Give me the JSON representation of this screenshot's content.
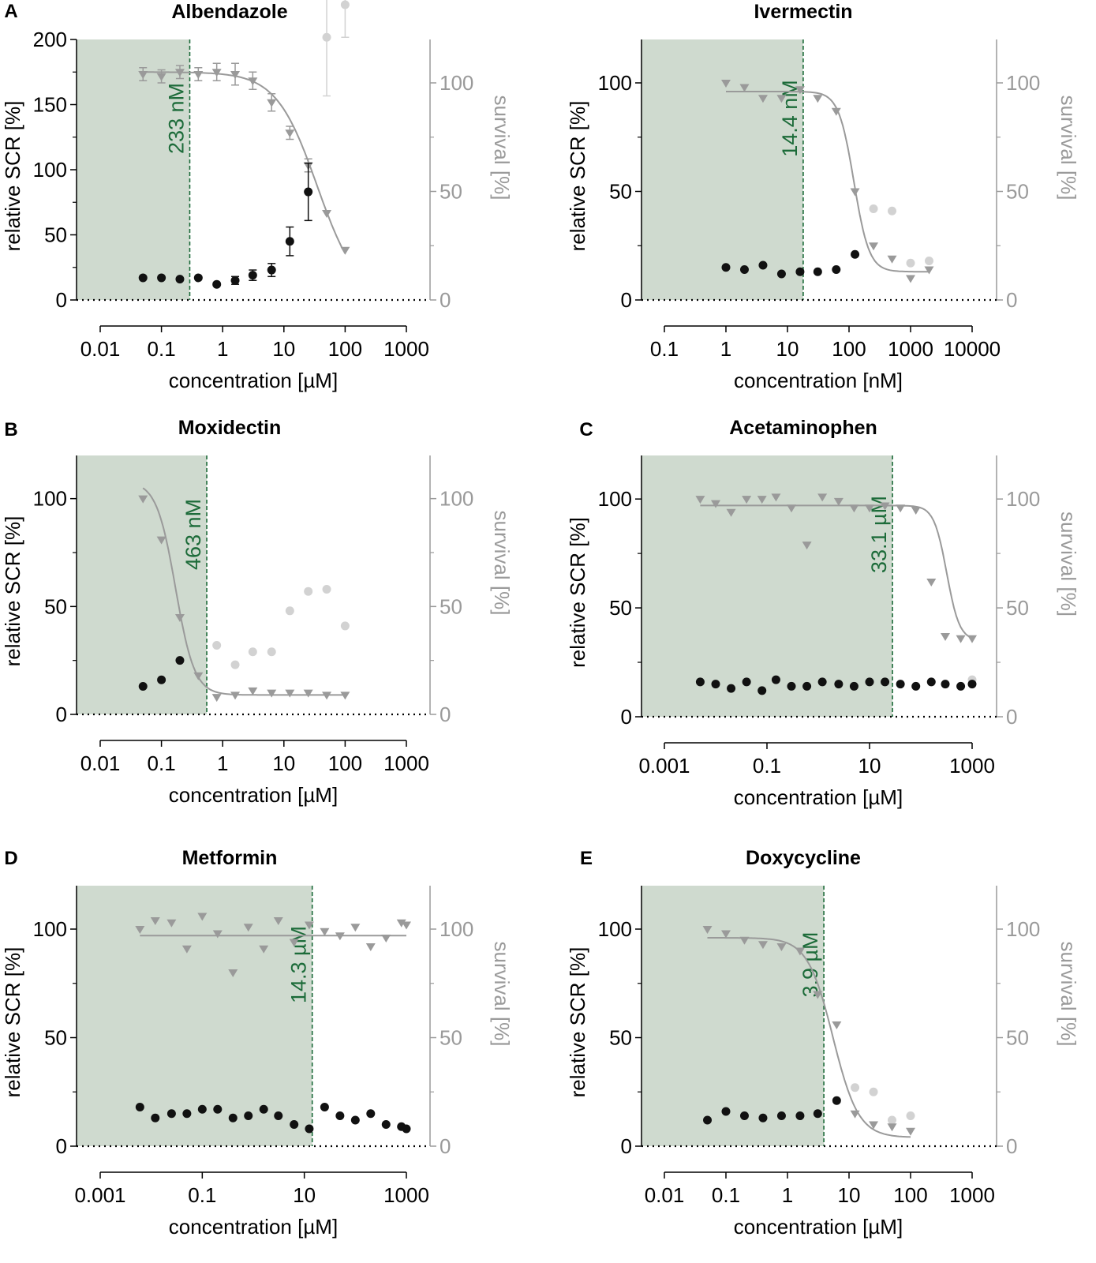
{
  "colors": {
    "shade": "#cfdacf",
    "marker_line": "#1c6b39",
    "scr_points": "#111111",
    "survival_points": "#9a9a9a",
    "excluded_points": "#d2d2d2",
    "fit_line": "#9a9a9a",
    "axis_right": "#9a9a9a"
  },
  "chart_data": [
    {
      "panel": "A",
      "title": "Albendazole",
      "type": "scatter",
      "xlabel": "concentration [µM]",
      "ylabel": "relative SCR [%]",
      "y2label": "survival [%]",
      "xticks": [
        0.01,
        0.1,
        1,
        10,
        100,
        1000
      ],
      "xtick_labels": [
        "0.01",
        "0.1",
        "1",
        "10",
        "100",
        "1000"
      ],
      "xlim": [
        0.01,
        1000
      ],
      "ylim": [
        0,
        200
      ],
      "yticks": [
        0,
        50,
        100,
        150,
        200
      ],
      "ytick_labels": [
        "0",
        "50",
        "100",
        "150",
        "200"
      ],
      "y2lim": [
        0,
        120
      ],
      "y2ticks": [
        0,
        50,
        100
      ],
      "y2tick_labels": [
        "0",
        "50",
        "100"
      ],
      "marker_x": 0.29,
      "marker_label": "233 nM",
      "scr": {
        "x": [
          0.05,
          0.1,
          0.2,
          0.4,
          0.8,
          1.6,
          3.1,
          6.3,
          12.5,
          25
        ],
        "y": [
          17,
          17,
          16,
          17,
          12,
          15,
          19,
          23,
          45,
          83
        ],
        "err": [
          0,
          0,
          0,
          0,
          0,
          3,
          4,
          5,
          11,
          22
        ]
      },
      "survival": {
        "x": [
          0.05,
          0.1,
          0.2,
          0.4,
          0.8,
          1.6,
          3.1,
          6.3,
          12.5,
          25,
          50,
          100
        ],
        "y": [
          104,
          103,
          105,
          104,
          105,
          104,
          101,
          91,
          77,
          62,
          40,
          23
        ],
        "err": [
          3,
          3,
          3,
          3,
          4,
          5,
          4,
          4,
          3,
          3,
          0,
          0
        ]
      },
      "excluded": {
        "x": [
          50,
          100
        ],
        "y": [
          121,
          136
        ],
        "err": [
          27,
          15
        ]
      },
      "fit": {
        "type": "logistic",
        "top": 105,
        "bottom": 0,
        "ec50": 35,
        "hill": 1.3,
        "from": 0.05,
        "to": 100
      }
    },
    {
      "panel": "",
      "title": "Ivermectin",
      "type": "scatter",
      "xlabel": "concentration [nM]",
      "ylabel": "relative SCR [%]",
      "y2label": "survival [%]",
      "xticks": [
        0.1,
        1,
        10,
        100,
        1000,
        10000
      ],
      "xtick_labels": [
        "0.1",
        "1",
        "10",
        "100",
        "1000",
        "10000"
      ],
      "xlim": [
        0.1,
        10000
      ],
      "ylim": [
        0,
        120
      ],
      "yticks": [
        0,
        50,
        100
      ],
      "ytick_labels": [
        "0",
        "50",
        "100"
      ],
      "y2lim": [
        0,
        120
      ],
      "y2ticks": [
        0,
        50,
        100
      ],
      "y2tick_labels": [
        "0",
        "50",
        "100"
      ],
      "marker_x": 18,
      "marker_label": "14.4 nM",
      "scr": {
        "x": [
          1,
          2,
          4,
          8,
          16,
          31,
          62,
          125
        ],
        "y": [
          15,
          14,
          16,
          12,
          13,
          13,
          14,
          21
        ]
      },
      "survival": {
        "x": [
          1,
          2,
          4,
          8,
          16,
          31,
          62,
          125,
          250,
          500,
          1000,
          2000
        ],
        "y": [
          100,
          98,
          93,
          93,
          97,
          93,
          87,
          50,
          25,
          19,
          10,
          14
        ]
      },
      "excluded": {
        "x": [
          250,
          500,
          1000,
          2000
        ],
        "y": [
          42,
          41,
          17,
          18
        ]
      },
      "fit": {
        "type": "logistic",
        "top": 96,
        "bottom": 13,
        "ec50": 120,
        "hill": 3.5,
        "from": 1,
        "to": 2000
      }
    },
    {
      "panel": "B",
      "title": "Moxidectin",
      "type": "scatter",
      "xlabel": "concentration [µM]",
      "ylabel": "relative SCR [%]",
      "y2label": "survival [%]",
      "xticks": [
        0.01,
        0.1,
        1,
        10,
        100,
        1000
      ],
      "xtick_labels": [
        "0.01",
        "0.1",
        "1",
        "10",
        "100",
        "1000"
      ],
      "xlim": [
        0.01,
        1000
      ],
      "ylim": [
        0,
        120
      ],
      "yticks": [
        0,
        50,
        100
      ],
      "ytick_labels": [
        "0",
        "50",
        "100"
      ],
      "y2lim": [
        0,
        120
      ],
      "y2ticks": [
        0,
        50,
        100
      ],
      "y2tick_labels": [
        "0",
        "50",
        "100"
      ],
      "marker_x": 0.55,
      "marker_label": "463 nM",
      "scr": {
        "x": [
          0.05,
          0.1,
          0.2
        ],
        "y": [
          13,
          16,
          25
        ]
      },
      "survival": {
        "x": [
          0.05,
          0.1,
          0.2,
          0.4,
          0.8,
          1.6,
          3.1,
          6.3,
          12.5,
          25,
          50,
          100
        ],
        "y": [
          100,
          81,
          45,
          18,
          8,
          9,
          11,
          10,
          10,
          10,
          9,
          9
        ]
      },
      "excluded": {
        "x": [
          0.8,
          1.6,
          3.1,
          6.3,
          12.5,
          25,
          50,
          100
        ],
        "y": [
          32,
          23,
          29,
          29,
          48,
          57,
          58,
          41
        ]
      },
      "fit": {
        "type": "logistic",
        "top": 108,
        "bottom": 9,
        "ec50": 0.17,
        "hill": 2.8,
        "from": 0.05,
        "to": 100
      }
    },
    {
      "panel": "C",
      "title": "Acetaminophen",
      "type": "scatter",
      "xlabel": "concentration [µM]",
      "ylabel": "relative SCR [%]",
      "y2label": "survival [%]",
      "xticks": [
        0.001,
        0.1,
        10,
        1000
      ],
      "xtick_labels": [
        "0.001",
        "0.1",
        "10",
        "1000"
      ],
      "xlim": [
        0.001,
        1000
      ],
      "ylim": [
        0,
        120
      ],
      "yticks": [
        0,
        50,
        100
      ],
      "ytick_labels": [
        "0",
        "50",
        "100"
      ],
      "y2lim": [
        0,
        120
      ],
      "y2ticks": [
        0,
        50,
        100
      ],
      "y2tick_labels": [
        "0",
        "50",
        "100"
      ],
      "marker_x": 28,
      "marker_label": "33.1 µM",
      "scr": {
        "x": [
          0.005,
          0.01,
          0.02,
          0.04,
          0.08,
          0.15,
          0.3,
          0.6,
          1.2,
          2.5,
          5,
          10,
          20,
          40,
          80,
          160,
          300,
          600,
          1000
        ],
        "y": [
          16,
          15,
          13,
          16,
          12,
          17,
          14,
          14,
          16,
          15,
          14,
          16,
          16,
          15,
          14,
          16,
          15,
          14,
          15
        ]
      },
      "survival": {
        "x": [
          0.005,
          0.01,
          0.02,
          0.04,
          0.08,
          0.15,
          0.3,
          0.6,
          1.2,
          2.5,
          5,
          10,
          20,
          40,
          80,
          160,
          300,
          600,
          1000
        ],
        "y": [
          100,
          98,
          94,
          100,
          100,
          101,
          96,
          79,
          101,
          99,
          96,
          96,
          97,
          96,
          95,
          62,
          37,
          36,
          36
        ]
      },
      "excluded": {
        "x": [
          1000
        ],
        "y": [
          17
        ]
      },
      "fit": {
        "type": "logistic",
        "top": 97,
        "bottom": 35,
        "ec50": 320,
        "hill": 3.5,
        "from": 0.005,
        "to": 1000
      }
    },
    {
      "panel": "D",
      "title": "Metformin",
      "type": "scatter",
      "xlabel": "concentration [µM]",
      "ylabel": "relative SCR [%]",
      "y2label": "survival [%]",
      "xticks": [
        0.001,
        0.1,
        10,
        1000
      ],
      "xtick_labels": [
        "0.001",
        "0.1",
        "10",
        "1000"
      ],
      "xlim": [
        0.001,
        1000
      ],
      "ylim": [
        0,
        120
      ],
      "yticks": [
        0,
        50,
        100
      ],
      "ytick_labels": [
        "0",
        "50",
        "100"
      ],
      "y2lim": [
        0,
        120
      ],
      "y2ticks": [
        0,
        50,
        100
      ],
      "y2tick_labels": [
        "0",
        "50",
        "100"
      ],
      "marker_x": 14.3,
      "marker_label": "14.3 µM",
      "scr": {
        "x": [
          0.006,
          0.012,
          0.025,
          0.05,
          0.1,
          0.2,
          0.4,
          0.8,
          1.6,
          3.1,
          6.3,
          12.5,
          25,
          50,
          100,
          200,
          400,
          800,
          1000
        ],
        "y": [
          18,
          13,
          15,
          15,
          17,
          17,
          13,
          14,
          17,
          14,
          10,
          8,
          18,
          14,
          12,
          15,
          10,
          9,
          8
        ]
      },
      "survival": {
        "x": [
          0.006,
          0.012,
          0.025,
          0.05,
          0.1,
          0.2,
          0.4,
          0.8,
          1.6,
          3.1,
          6.3,
          12.5,
          25,
          50,
          100,
          200,
          400,
          800,
          1000
        ],
        "y": [
          100,
          104,
          103,
          91,
          106,
          98,
          80,
          101,
          91,
          104,
          94,
          102,
          99,
          97,
          101,
          92,
          96,
          103,
          102
        ]
      },
      "excluded": {
        "x": [],
        "y": []
      },
      "fit": {
        "type": "flat",
        "top": 97,
        "from": 0.006,
        "to": 1000
      }
    },
    {
      "panel": "E",
      "title": "Doxycycline",
      "type": "scatter",
      "xlabel": "concentration [µM]",
      "ylabel": "relative SCR [%]",
      "y2label": "survival [%]",
      "xticks": [
        0.01,
        0.1,
        1,
        10,
        100,
        1000
      ],
      "xtick_labels": [
        "0.01",
        "0.1",
        "1",
        "10",
        "100",
        "1000"
      ],
      "xlim": [
        0.01,
        1000
      ],
      "ylim": [
        0,
        120
      ],
      "yticks": [
        0,
        50,
        100
      ],
      "ytick_labels": [
        "0",
        "50",
        "100"
      ],
      "y2lim": [
        0,
        120
      ],
      "y2ticks": [
        0,
        50,
        100
      ],
      "y2tick_labels": [
        "0",
        "50",
        "100"
      ],
      "marker_x": 3.9,
      "marker_label": "3.9 µM",
      "scr": {
        "x": [
          0.05,
          0.1,
          0.2,
          0.4,
          0.8,
          1.6,
          3.1,
          6.3
        ],
        "y": [
          12,
          16,
          14,
          13,
          14,
          14,
          15,
          21
        ]
      },
      "survival": {
        "x": [
          0.05,
          0.1,
          0.2,
          0.4,
          0.8,
          1.6,
          3.1,
          6.3,
          12.5,
          25,
          50,
          100
        ],
        "y": [
          100,
          98,
          95,
          93,
          92,
          90,
          70,
          56,
          15,
          10,
          9,
          7
        ]
      },
      "excluded": {
        "x": [
          12.5,
          25,
          50,
          100
        ],
        "y": [
          27,
          25,
          12,
          14
        ]
      },
      "fit": {
        "type": "logistic",
        "top": 96,
        "bottom": 4,
        "ec50": 5.5,
        "hill": 2.1,
        "from": 0.05,
        "to": 100
      }
    }
  ]
}
